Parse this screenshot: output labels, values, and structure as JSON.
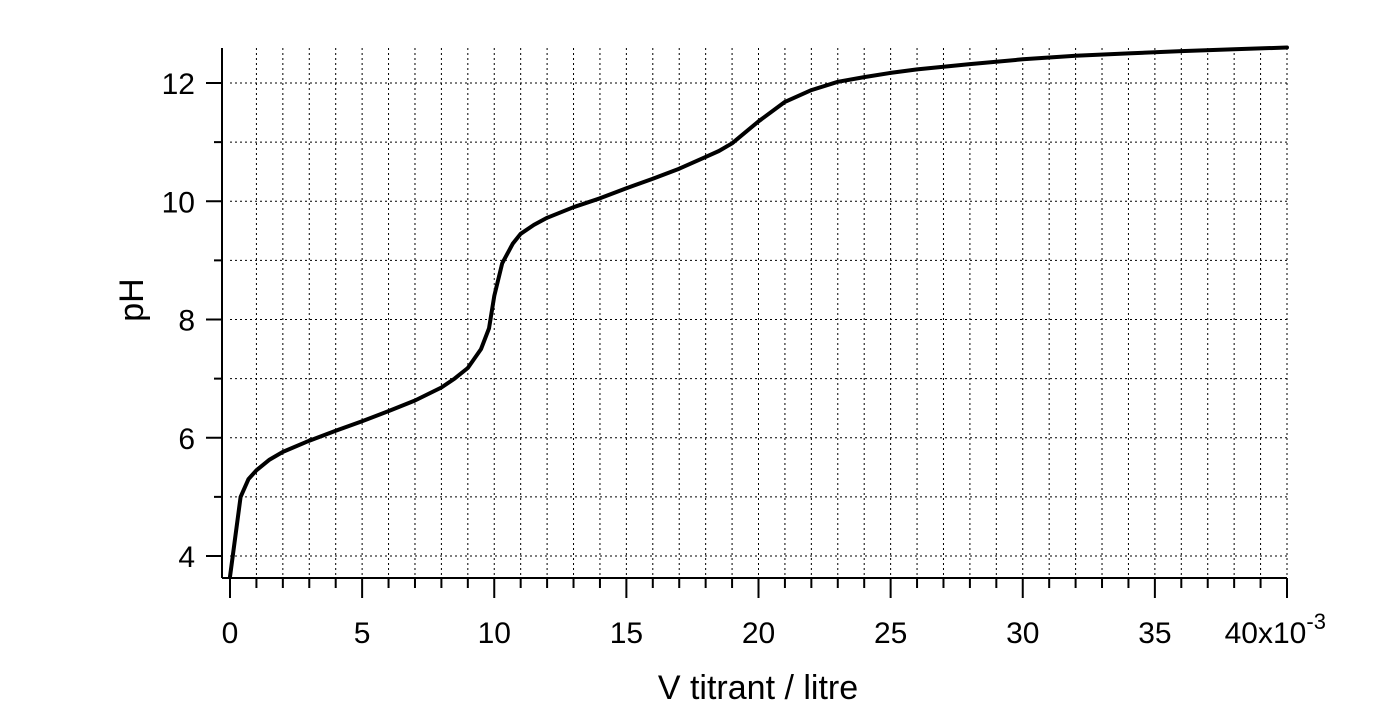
{
  "chart_data": {
    "type": "line",
    "xlabel": "V titrant / litre",
    "ylabel": "pH",
    "x_multiplier_label": "x10",
    "x_multiplier_exponent": "-3",
    "xlim": [
      0,
      40
    ],
    "ylim": [
      3.6,
      12.6
    ],
    "x_ticks": [
      0,
      5,
      10,
      15,
      20,
      25,
      30,
      35,
      40
    ],
    "x_tick_labels": [
      "0",
      "5",
      "10",
      "15",
      "20",
      "25",
      "30",
      "35",
      "40"
    ],
    "y_ticks": [
      4,
      6,
      8,
      10,
      12
    ],
    "y_tick_labels": [
      "4",
      "6",
      "8",
      "10",
      "12"
    ],
    "grid": true,
    "line_color": "#000000",
    "series": [
      {
        "x": [
          0,
          0.4,
          0.7,
          1,
          1.5,
          2,
          3,
          4,
          5,
          6,
          7,
          8,
          8.5,
          9,
          9.5,
          9.8,
          10,
          10.3,
          10.7,
          11,
          11.5,
          12,
          13,
          14,
          15,
          16,
          17,
          18,
          18.5,
          19,
          20,
          21,
          22,
          23,
          24,
          25,
          26,
          28,
          30,
          32,
          34,
          36,
          38,
          40
        ],
        "y": [
          3.65,
          5.0,
          5.3,
          5.45,
          5.63,
          5.76,
          5.95,
          6.12,
          6.28,
          6.45,
          6.63,
          6.85,
          7.0,
          7.18,
          7.5,
          7.85,
          8.4,
          8.95,
          9.28,
          9.45,
          9.6,
          9.72,
          9.9,
          10.05,
          10.22,
          10.38,
          10.55,
          10.75,
          10.85,
          10.98,
          11.35,
          11.68,
          11.88,
          12.02,
          12.1,
          12.17,
          12.23,
          12.32,
          12.4,
          12.46,
          12.5,
          12.54,
          12.57,
          12.6
        ]
      }
    ]
  }
}
